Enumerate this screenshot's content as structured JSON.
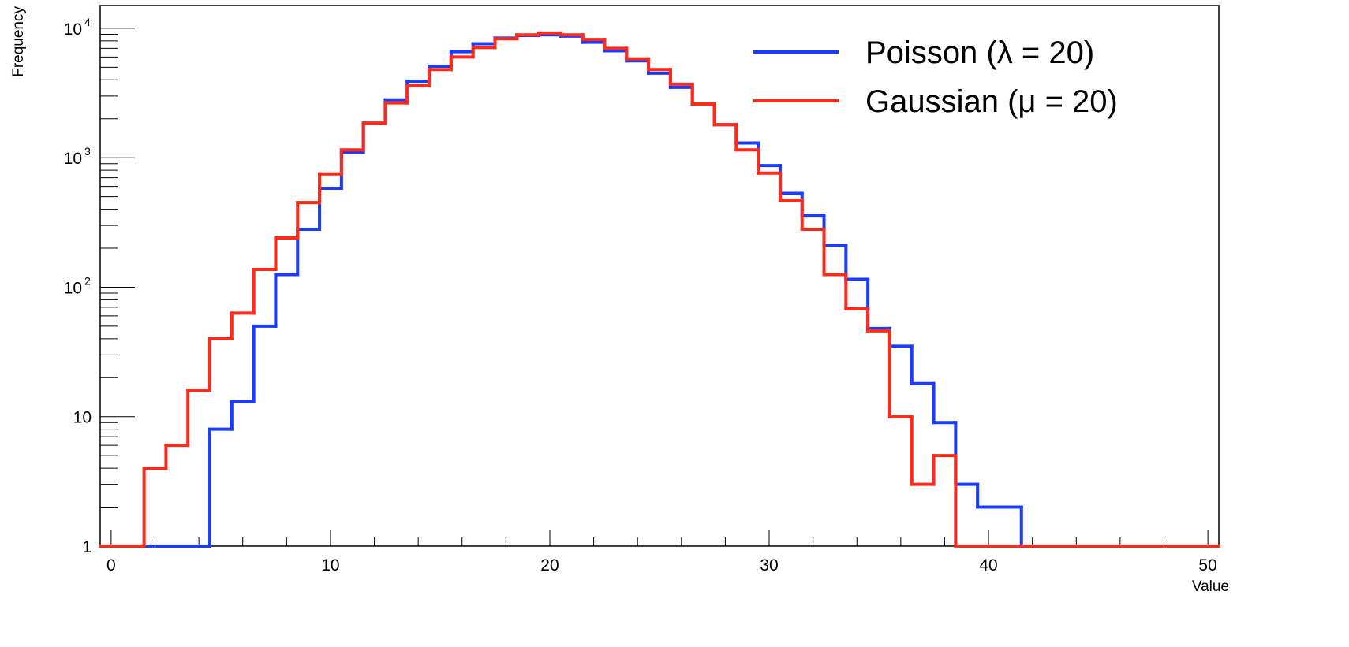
{
  "chart_data": {
    "type": "line",
    "title": "",
    "xlabel": "Value",
    "ylabel": "Frequency",
    "xlim": [
      -0.5,
      50.5
    ],
    "ylim": [
      1,
      15000
    ],
    "y_scale": "log",
    "grid": false,
    "legend_position": "top-right",
    "bin_width": 1,
    "x_ticks": [
      {
        "value": 0,
        "label": "0"
      },
      {
        "value": 10,
        "label": "10"
      },
      {
        "value": 20,
        "label": "20"
      },
      {
        "value": 30,
        "label": "30"
      },
      {
        "value": 40,
        "label": "40"
      },
      {
        "value": 50,
        "label": "50"
      }
    ],
    "y_ticks": [
      {
        "value": 1,
        "label": "1"
      },
      {
        "value": 10,
        "label": "10"
      },
      {
        "value": 100,
        "label": "10",
        "exponent": "2"
      },
      {
        "value": 1000,
        "label": "10",
        "exponent": "3"
      },
      {
        "value": 10000,
        "label": "10",
        "exponent": "4"
      }
    ],
    "series": [
      {
        "name": "Poisson (λ = 20)",
        "color": "#1a3cff",
        "bin_starts": [
          -0.5,
          0.5,
          1.5,
          2.5,
          3.5,
          4.5,
          5.5,
          6.5,
          7.5,
          8.5,
          9.5,
          10.5,
          11.5,
          12.5,
          13.5,
          14.5,
          15.5,
          16.5,
          17.5,
          18.5,
          19.5,
          20.5,
          21.5,
          22.5,
          23.5,
          24.5,
          25.5,
          26.5,
          27.5,
          28.5,
          29.5,
          30.5,
          31.5,
          32.5,
          33.5,
          34.5,
          35.5,
          36.5,
          37.5,
          38.5,
          39.5,
          40.5,
          41.5,
          42.5,
          43.5,
          44.5,
          45.5,
          46.5,
          47.5,
          48.5,
          49.5
        ],
        "values": [
          1,
          1,
          1,
          1,
          1,
          8,
          13,
          50,
          125,
          280,
          580,
          1100,
          1850,
          2800,
          3900,
          5100,
          6600,
          7600,
          8400,
          8800,
          8900,
          8700,
          7800,
          6700,
          5600,
          4500,
          3500,
          2600,
          1800,
          1300,
          870,
          530,
          360,
          210,
          115,
          48,
          35,
          18,
          9,
          3,
          2,
          2,
          1,
          1,
          1,
          1,
          1,
          1,
          1,
          1,
          1
        ]
      },
      {
        "name": "Gaussian (μ = 20)",
        "color": "#ff2a1a",
        "bin_starts": [
          -0.5,
          0.5,
          1.5,
          2.5,
          3.5,
          4.5,
          5.5,
          6.5,
          7.5,
          8.5,
          9.5,
          10.5,
          11.5,
          12.5,
          13.5,
          14.5,
          15.5,
          16.5,
          17.5,
          18.5,
          19.5,
          20.5,
          21.5,
          22.5,
          23.5,
          24.5,
          25.5,
          26.5,
          27.5,
          28.5,
          29.5,
          30.5,
          31.5,
          32.5,
          33.5,
          34.5,
          35.5,
          36.5,
          37.5,
          38.5,
          39.5,
          40.5,
          41.5,
          42.5,
          43.5,
          44.5,
          45.5,
          46.5,
          47.5,
          48.5,
          49.5
        ],
        "values": [
          1,
          1,
          4,
          6,
          16,
          40,
          63,
          137,
          240,
          450,
          750,
          1150,
          1850,
          2650,
          3600,
          4800,
          6000,
          7100,
          8300,
          8900,
          9200,
          8900,
          8200,
          7000,
          5800,
          4800,
          3700,
          2600,
          1800,
          1150,
          760,
          470,
          280,
          125,
          68,
          46,
          10,
          3,
          5,
          1,
          1,
          1,
          1,
          1,
          1,
          1,
          1,
          1,
          1,
          1,
          1
        ]
      }
    ]
  }
}
